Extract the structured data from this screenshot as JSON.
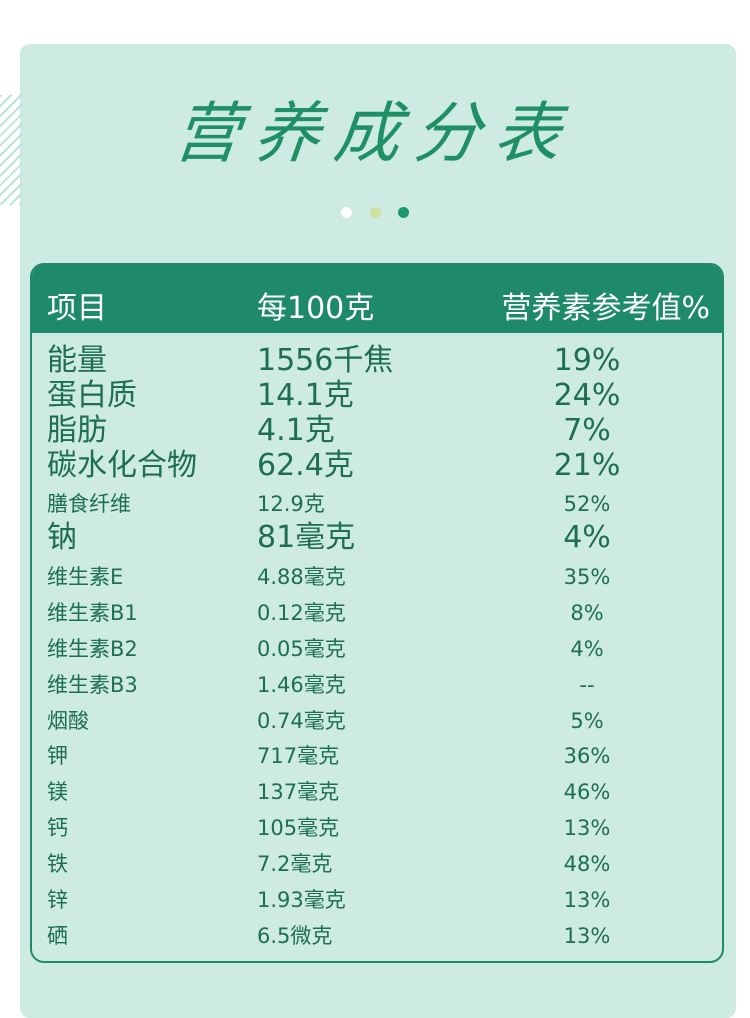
{
  "title": "营养成分表",
  "table": {
    "headers": [
      "项目",
      "每100克",
      "营养素参考值%"
    ],
    "rows": [
      {
        "name": "能量",
        "value": "1556千焦",
        "nrv": "19%",
        "size": "big"
      },
      {
        "name": "蛋白质",
        "value": "14.1克",
        "nrv": "24%",
        "size": "big"
      },
      {
        "name": "脂肪",
        "value": "4.1克",
        "nrv": "7%",
        "size": "big"
      },
      {
        "name": "碳水化合物",
        "value": "62.4克",
        "nrv": "21%",
        "size": "big"
      },
      {
        "name": "膳食纤维",
        "value": "12.9克",
        "nrv": "52%",
        "size": "small"
      },
      {
        "name": "钠",
        "value": "81毫克",
        "nrv": "4%",
        "size": "big"
      },
      {
        "name": "维生素E",
        "value": "4.88毫克",
        "nrv": "35%",
        "size": "small"
      },
      {
        "name": "维生素B1",
        "value": "0.12毫克",
        "nrv": "8%",
        "size": "small"
      },
      {
        "name": "维生素B2",
        "value": "0.05毫克",
        "nrv": "4%",
        "size": "small"
      },
      {
        "name": "维生素B3",
        "value": "1.46毫克",
        "nrv": "--",
        "size": "small"
      },
      {
        "name": "烟酸",
        "value": "0.74毫克",
        "nrv": "5%",
        "size": "small"
      },
      {
        "name": "钾",
        "value": "717毫克",
        "nrv": "36%",
        "size": "small"
      },
      {
        "name": "镁",
        "value": "137毫克",
        "nrv": "46%",
        "size": "small"
      },
      {
        "name": "钙",
        "value": "105毫克",
        "nrv": "13%",
        "size": "small"
      },
      {
        "name": "铁",
        "value": "7.2毫克",
        "nrv": "48%",
        "size": "small"
      },
      {
        "name": "锌",
        "value": "1.93毫克",
        "nrv": "13%",
        "size": "small"
      },
      {
        "name": "硒",
        "value": "6.5微克",
        "nrv": "13%",
        "size": "small"
      }
    ]
  },
  "colors": {
    "accent": "#1f8a69",
    "background": "#cdebe2",
    "text": "#1e6d55"
  }
}
